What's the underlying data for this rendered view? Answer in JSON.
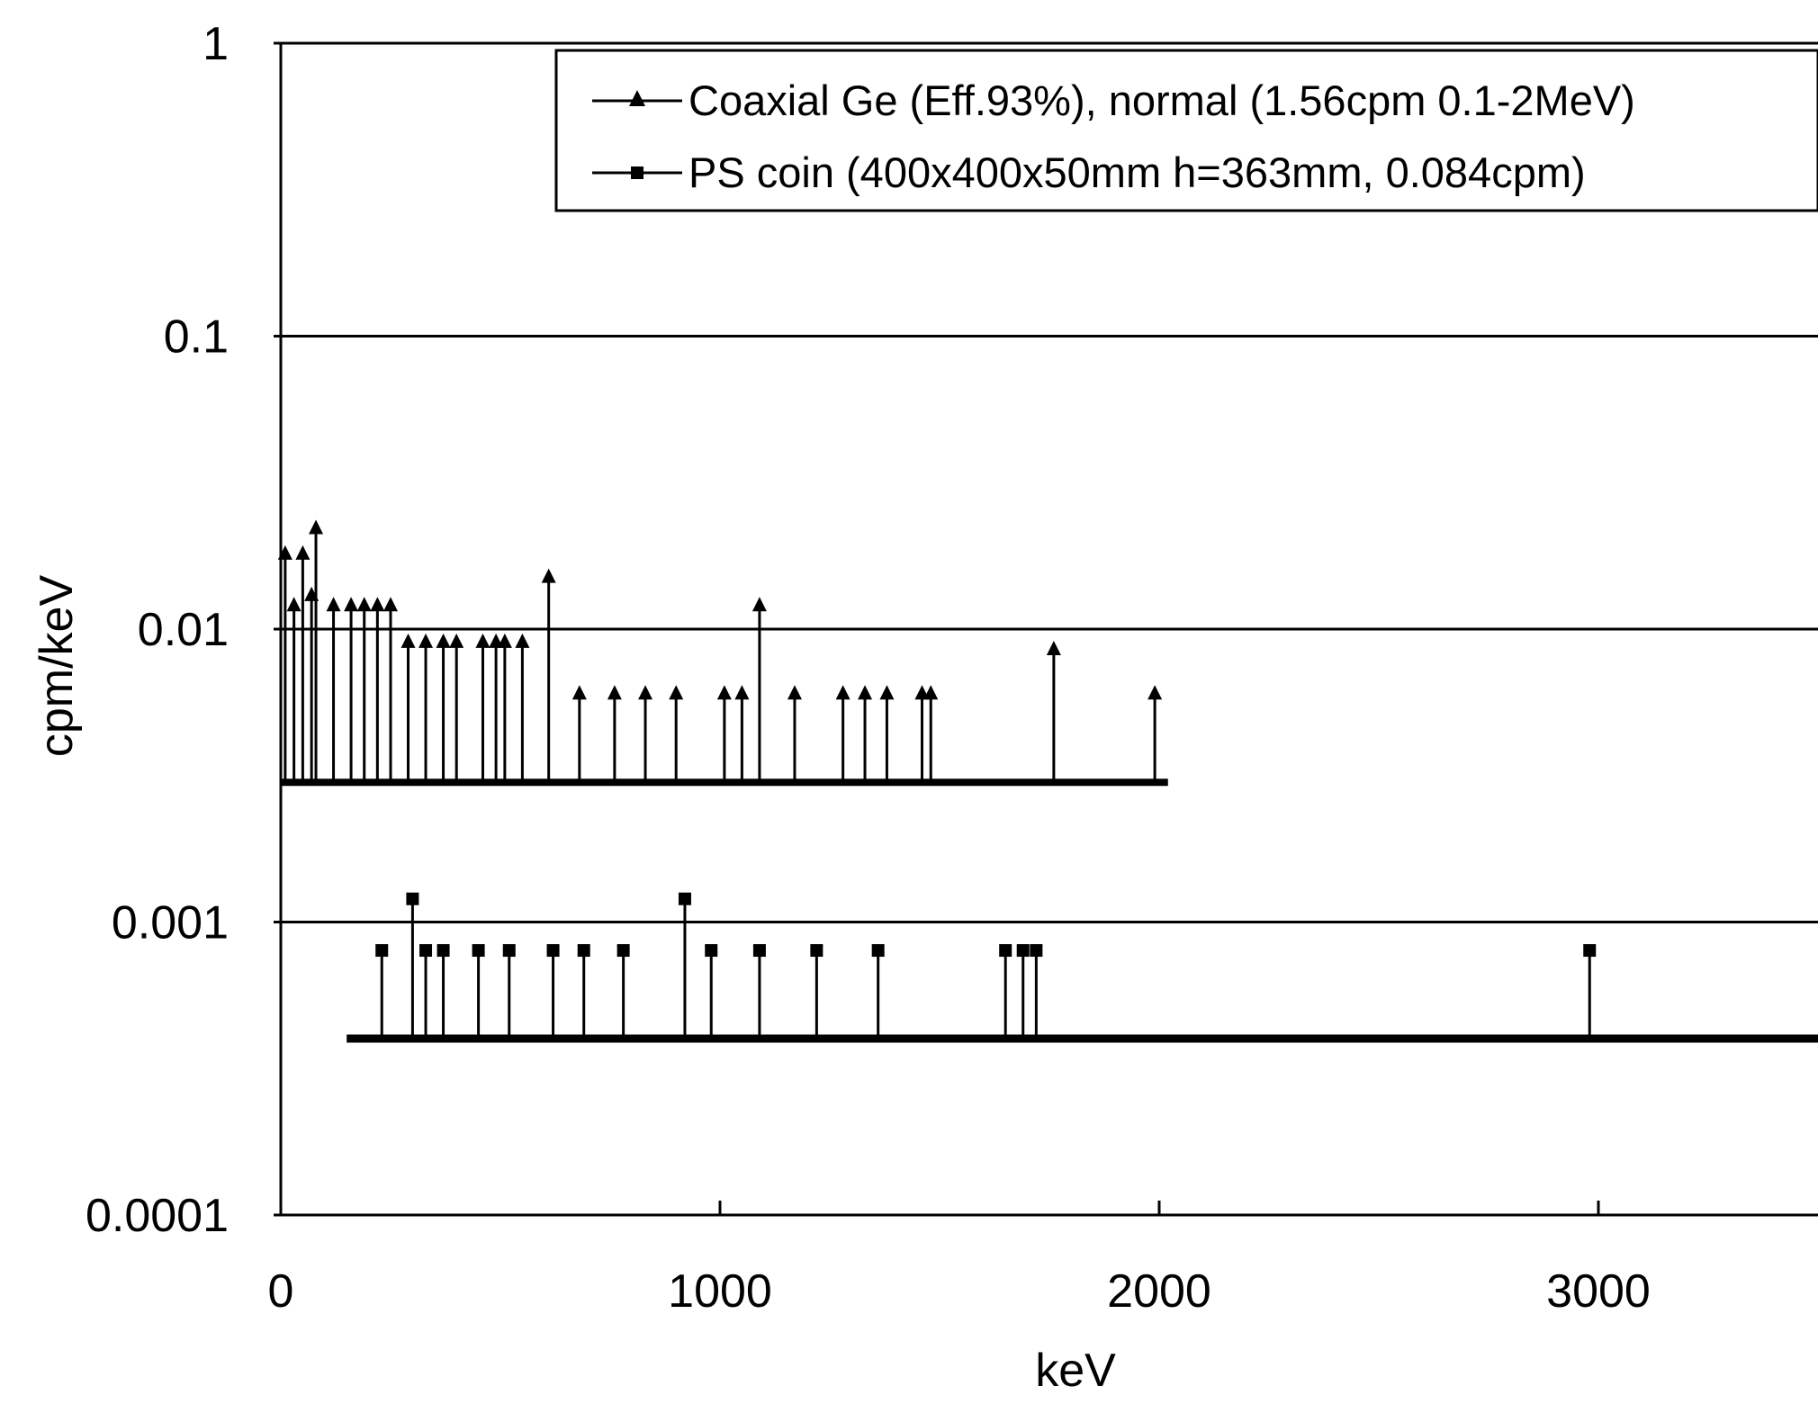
{
  "chart_data": {
    "type": "scatter",
    "title": "",
    "xlabel": "keV",
    "ylabel": "cpm/keV",
    "xlim": [
      0,
      3500
    ],
    "ylim": [
      0.0001,
      1
    ],
    "yscale": "log",
    "grid": "horizontal at decades",
    "legend_position": "top-right",
    "x_ticks": [
      "0",
      "1000",
      "2000",
      "3000"
    ],
    "y_ticks": [
      "0.0001",
      "0.001",
      "0.01",
      "0.1",
      "1"
    ],
    "colors": {
      "series": "#000000",
      "grid": "#000000",
      "background": "#ffffff"
    },
    "series": [
      {
        "name": "Coaxial Ge (Eff.93%), normal (1.56cpm 0.1-2MeV)",
        "marker": "triangle",
        "baseline": 0.003,
        "points": [
          [
            10,
            0.018
          ],
          [
            30,
            0.012
          ],
          [
            50,
            0.018
          ],
          [
            70,
            0.013
          ],
          [
            80,
            0.022
          ],
          [
            120,
            0.012
          ],
          [
            160,
            0.012
          ],
          [
            190,
            0.012
          ],
          [
            220,
            0.012
          ],
          [
            250,
            0.012
          ],
          [
            290,
            0.009
          ],
          [
            330,
            0.009
          ],
          [
            370,
            0.009
          ],
          [
            400,
            0.009
          ],
          [
            460,
            0.009
          ],
          [
            490,
            0.009
          ],
          [
            510,
            0.009
          ],
          [
            550,
            0.009
          ],
          [
            610,
            0.015
          ],
          [
            680,
            0.006
          ],
          [
            760,
            0.006
          ],
          [
            830,
            0.006
          ],
          [
            900,
            0.006
          ],
          [
            1010,
            0.006
          ],
          [
            1050,
            0.006
          ],
          [
            1090,
            0.012
          ],
          [
            1170,
            0.006
          ],
          [
            1280,
            0.006
          ],
          [
            1330,
            0.006
          ],
          [
            1380,
            0.006
          ],
          [
            1460,
            0.006
          ],
          [
            1480,
            0.006
          ],
          [
            1760,
            0.0085
          ],
          [
            1990,
            0.006
          ]
        ]
      },
      {
        "name": "PS coin (400x400x50mm h=363mm, 0.084cpm)",
        "marker": "square",
        "baseline": 0.0004,
        "points": [
          [
            230,
            0.0008
          ],
          [
            300,
            0.0012
          ],
          [
            330,
            0.0008
          ],
          [
            370,
            0.0008
          ],
          [
            450,
            0.0008
          ],
          [
            520,
            0.0008
          ],
          [
            620,
            0.0008
          ],
          [
            690,
            0.0008
          ],
          [
            780,
            0.0008
          ],
          [
            920,
            0.0012
          ],
          [
            980,
            0.0008
          ],
          [
            1090,
            0.0008
          ],
          [
            1220,
            0.0008
          ],
          [
            1360,
            0.0008
          ],
          [
            1650,
            0.0008
          ],
          [
            1690,
            0.0008
          ],
          [
            1720,
            0.0008
          ],
          [
            2980,
            0.0008
          ]
        ]
      }
    ]
  }
}
